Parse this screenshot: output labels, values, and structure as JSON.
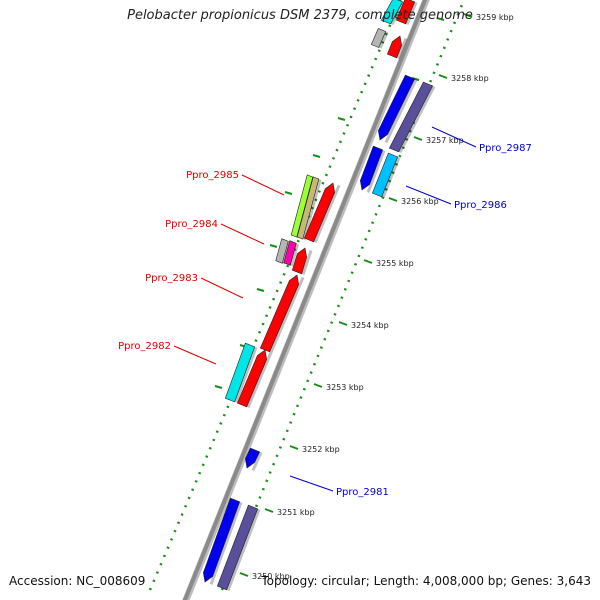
{
  "title": "Pelobacter propionicus DSM 2379, complete genome",
  "footer": {
    "accession": "Accession: NC_008609",
    "summary": "Topology: circular; Length: 4,008,000 bp; Genes: 3,643"
  },
  "colors": {
    "backbone": "#8a8a8a",
    "forward_strand": "#ff0000",
    "reverse_strand": "#0000ee",
    "rna": "#00e5e5",
    "pseudo": "#9aff33",
    "other": "#5a4f9a",
    "grid": "#1a8c1a",
    "label_forward": "#dd0000",
    "label_reverse": "#0000cc"
  },
  "ticks": [
    {
      "label": "3250 kbp"
    },
    {
      "label": "3251 kbp"
    },
    {
      "label": "3252 kbp"
    },
    {
      "label": "3253 kbp"
    },
    {
      "label": "3254 kbp"
    },
    {
      "label": "3255 kbp"
    },
    {
      "label": "3256 kbp"
    },
    {
      "label": "3257 kbp"
    },
    {
      "label": "3258 kbp"
    },
    {
      "label": "3259 kbp"
    }
  ],
  "genes": [
    {
      "label": "Ppro_2981",
      "strand": "reverse"
    },
    {
      "label": "Ppro_2982",
      "strand": "forward"
    },
    {
      "label": "Ppro_2983",
      "strand": "forward"
    },
    {
      "label": "Ppro_2984",
      "strand": "forward"
    },
    {
      "label": "Ppro_2985",
      "strand": "forward"
    },
    {
      "label": "Ppro_2986",
      "strand": "reverse"
    },
    {
      "label": "Ppro_2987",
      "strand": "reverse"
    }
  ]
}
